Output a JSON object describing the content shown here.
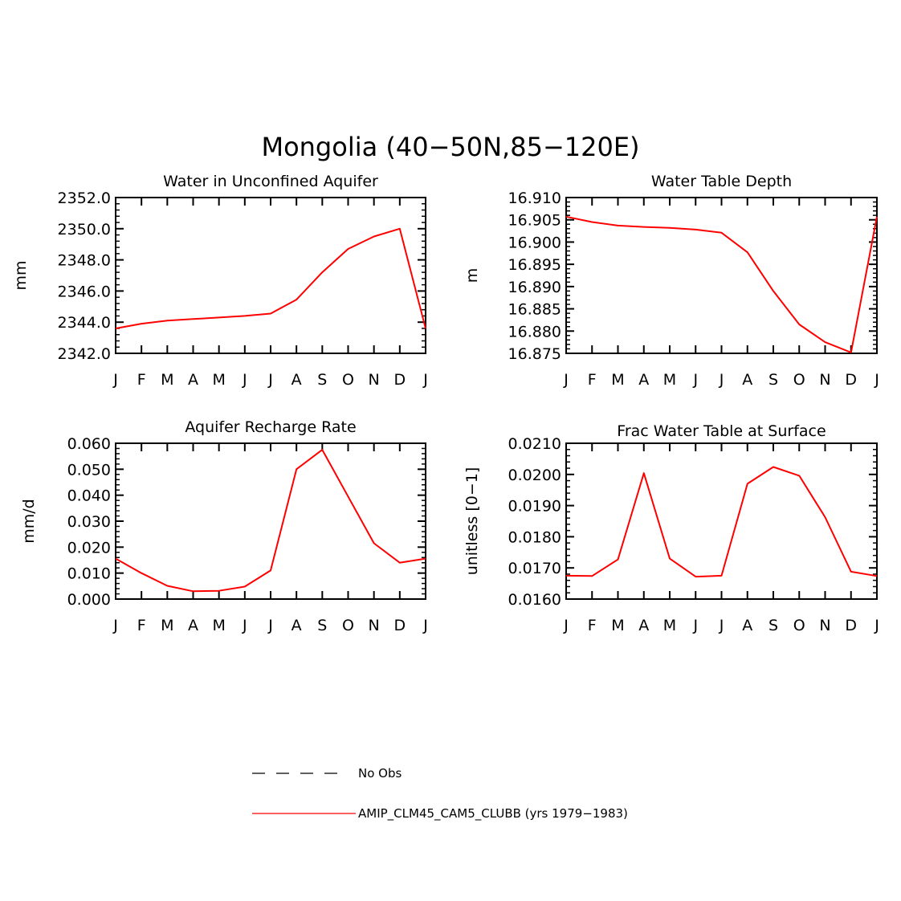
{
  "figure": {
    "title": "Mongolia (40−50N,85−120E)"
  },
  "colors": {
    "series": "#ff0000",
    "axis": "#000000",
    "obs": "#000000"
  },
  "chart_data": [
    {
      "type": "line",
      "title": "Water in Unconfined Aquifer",
      "ylabel": "mm",
      "xlabel": "",
      "categories": [
        "J",
        "F",
        "M",
        "A",
        "M",
        "J",
        "J",
        "A",
        "S",
        "O",
        "N",
        "D",
        "J"
      ],
      "ylim": [
        2342.0,
        2352.0
      ],
      "yticks": [
        2342.0,
        2344.0,
        2346.0,
        2348.0,
        2350.0,
        2352.0
      ],
      "ytick_labels": [
        "2342.0",
        "2344.0",
        "2346.0",
        "2348.0",
        "2350.0",
        "2352.0"
      ],
      "series": [
        {
          "name": "AMIP_CLM45_CAM5_CLUBB (yrs 1979−1983)",
          "values": [
            2343.6,
            2343.9,
            2344.1,
            2344.2,
            2344.3,
            2344.4,
            2344.55,
            2345.45,
            2347.2,
            2348.7,
            2349.5,
            2350.0,
            2343.6
          ]
        }
      ]
    },
    {
      "type": "line",
      "title": "Water Table Depth",
      "ylabel": "m",
      "xlabel": "",
      "categories": [
        "J",
        "F",
        "M",
        "A",
        "M",
        "J",
        "J",
        "A",
        "S",
        "O",
        "N",
        "D",
        "J"
      ],
      "ylim": [
        16.875,
        16.91
      ],
      "yticks": [
        16.875,
        16.88,
        16.885,
        16.89,
        16.895,
        16.9,
        16.905,
        16.91
      ],
      "ytick_labels": [
        "16.875",
        "16.880",
        "16.885",
        "16.890",
        "16.895",
        "16.900",
        "16.905",
        "16.910"
      ],
      "series": [
        {
          "name": "AMIP_CLM45_CAM5_CLUBB (yrs 1979−1983)",
          "values": [
            16.9057,
            16.9045,
            16.9037,
            16.9034,
            16.9032,
            16.9028,
            16.9021,
            16.8977,
            16.889,
            16.8815,
            16.8775,
            16.8752,
            16.9057
          ]
        }
      ]
    },
    {
      "type": "line",
      "title": "Aquifer Recharge Rate",
      "ylabel": "mm/d",
      "xlabel": "",
      "categories": [
        "J",
        "F",
        "M",
        "A",
        "M",
        "J",
        "J",
        "A",
        "S",
        "O",
        "N",
        "D",
        "J"
      ],
      "ylim": [
        0.0,
        0.06
      ],
      "yticks": [
        0.0,
        0.01,
        0.02,
        0.03,
        0.04,
        0.05,
        0.06
      ],
      "ytick_labels": [
        "0.000",
        "0.010",
        "0.020",
        "0.030",
        "0.040",
        "0.050",
        "0.060"
      ],
      "series": [
        {
          "name": "AMIP_CLM45_CAM5_CLUBB (yrs 1979−1983)",
          "values": [
            0.0156,
            0.01,
            0.0051,
            0.003,
            0.0032,
            0.0048,
            0.011,
            0.05,
            0.0575,
            0.0395,
            0.0215,
            0.014,
            0.0156
          ]
        }
      ]
    },
    {
      "type": "line",
      "title": "Frac Water Table at Surface",
      "ylabel": "unitless [0−1]",
      "xlabel": "",
      "categories": [
        "J",
        "F",
        "M",
        "A",
        "M",
        "J",
        "J",
        "A",
        "S",
        "O",
        "N",
        "D",
        "J"
      ],
      "ylim": [
        0.016,
        0.021
      ],
      "yticks": [
        0.016,
        0.017,
        0.018,
        0.019,
        0.02,
        0.021
      ],
      "ytick_labels": [
        "0.0160",
        "0.0170",
        "0.0180",
        "0.0190",
        "0.0200",
        "0.0210"
      ],
      "series": [
        {
          "name": "AMIP_CLM45_CAM5_CLUBB (yrs 1979−1983)",
          "values": [
            0.01675,
            0.01674,
            0.01727,
            0.02004,
            0.0173,
            0.01672,
            0.01675,
            0.0197,
            0.02024,
            0.01996,
            0.01863,
            0.01688,
            0.01674
          ]
        }
      ]
    }
  ],
  "legend": {
    "items": [
      {
        "label": "No Obs",
        "style": "dashed"
      },
      {
        "label": "AMIP_CLM45_CAM5_CLUBB (yrs 1979−1983)",
        "style": "solid"
      }
    ]
  }
}
